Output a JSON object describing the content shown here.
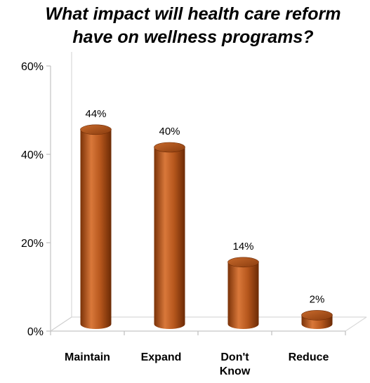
{
  "chart_data": {
    "type": "bar",
    "style": "3d-cylinder",
    "title": "What impact will health care reform have on wellness programs?",
    "categories": [
      "Maintain",
      "Expand",
      "Don't Know",
      "Reduce"
    ],
    "category_lines": [
      [
        "Maintain"
      ],
      [
        "Expand"
      ],
      [
        "Don't",
        "Know"
      ],
      [
        "Reduce"
      ]
    ],
    "values": [
      44,
      40,
      14,
      2
    ],
    "data_labels": [
      "44%",
      "40%",
      "14%",
      "2%"
    ],
    "ylim": [
      0,
      60
    ],
    "yticks": [
      0,
      20,
      40,
      60
    ],
    "ytick_labels": [
      "0%",
      "20%",
      "40%",
      "60%"
    ],
    "xlabel": "",
    "ylabel": "",
    "grid": false,
    "legend": "none",
    "bar_color": "#b5561c",
    "bar_color_dark": "#7a3208",
    "bar_color_light": "#d9783a"
  }
}
